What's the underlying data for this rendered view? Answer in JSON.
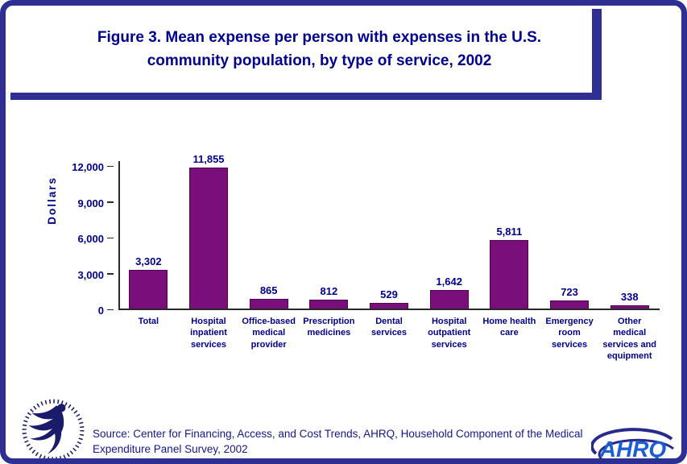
{
  "page": {
    "title_line1": "Figure 3. Mean expense per person with expenses in the U.S.",
    "title_line2": "community population, by type of service, 2002"
  },
  "chart_data": {
    "type": "bar",
    "title": "Figure 3. Mean expense per person with expenses in the U.S. community population, by type of service, 2002",
    "xlabel": "",
    "ylabel": "Dollars",
    "ylim": [
      0,
      12000
    ],
    "yticks": [
      0,
      3000,
      6000,
      9000,
      12000
    ],
    "ytick_labels": [
      "0",
      "3,000",
      "6,000",
      "9,000",
      "12,000"
    ],
    "grid": false,
    "legend_position": "none",
    "bar_color": "#7a0f7c",
    "categories": [
      "Total",
      "Hospital\ninpatient\nservices",
      "Office-based\nmedical\nprovider",
      "Prescription\nmedicines",
      "Dental\nservices",
      "Hospital\noutpatient\nservices",
      "Home health\ncare",
      "Emergency\nroom\nservices",
      "Other\nmedical\nservices and\nequipment"
    ],
    "values": [
      3302,
      11855,
      865,
      812,
      529,
      1642,
      5811,
      723,
      338
    ],
    "value_labels": [
      "3,302",
      "11,855",
      "865",
      "812",
      "529",
      "1,642",
      "5,811",
      "723",
      "338"
    ]
  },
  "footer": {
    "source_line1": "Source: Center for Financing, Access, and Cost Trends, AHRQ, Household Component of the Medical",
    "source_line2": "Expenditure Panel Survey, 2002",
    "ahrq_logo_text": "AHRQ",
    "hhs_logo_name": "hhs-seal"
  },
  "colors": {
    "frame_border": "#2d2f92",
    "title_text": "#00008f",
    "bar_fill": "#7a0f7c",
    "axis_text": "#00008b",
    "source_text": "#16168c",
    "ahrq_blue": "#1a5fd4"
  }
}
